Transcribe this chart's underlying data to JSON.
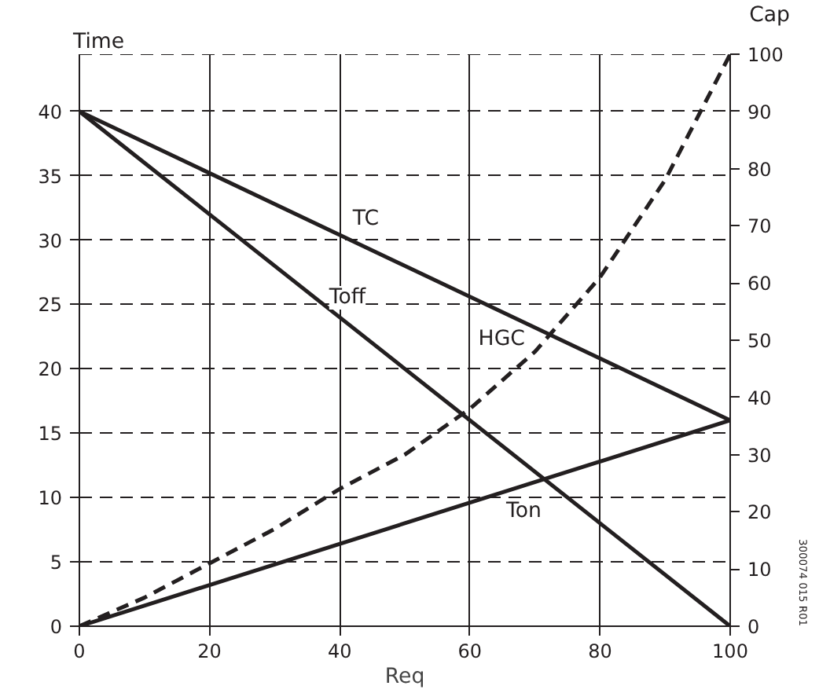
{
  "chart_data": {
    "type": "line",
    "xlabel": "Req",
    "ylabel": "Time",
    "y2label": "Cap",
    "x": [
      0,
      100
    ],
    "series": [
      {
        "name": "TC",
        "color": "#231f20",
        "values": [
          40,
          16
        ],
        "line_style": "solid"
      },
      {
        "name": "Toff",
        "color": "#231f20",
        "values": [
          40,
          0
        ],
        "line_style": "solid"
      },
      {
        "name": "Ton",
        "color": "#231f20",
        "values": [
          0,
          16
        ],
        "line_style": "solid"
      },
      {
        "name": "HGC",
        "color": "#231f20",
        "axis": "y2",
        "line_style": "dashed",
        "x": [
          0,
          10,
          20,
          30,
          40,
          50,
          60,
          70,
          80,
          90,
          100
        ],
        "values": [
          0,
          5,
          11,
          17,
          24,
          30,
          38,
          48,
          61,
          78,
          100
        ]
      }
    ],
    "xlim": [
      0,
      100
    ],
    "xticks": [
      0,
      20,
      40,
      60,
      80,
      100
    ],
    "ylim": [
      0,
      44.44
    ],
    "yticks": [
      0,
      5,
      10,
      15,
      20,
      25,
      30,
      35,
      40
    ],
    "y2lim": [
      0,
      100
    ],
    "y2ticks": [
      0,
      10,
      20,
      30,
      40,
      50,
      60,
      70,
      80,
      90,
      100
    ],
    "grid": true,
    "legend": false,
    "marker": "none",
    "annotations": [
      "300074 015 R01"
    ]
  }
}
